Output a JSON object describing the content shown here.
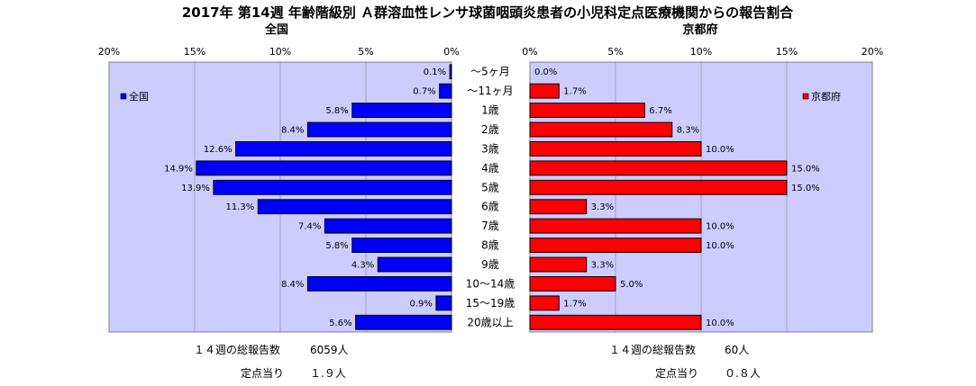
{
  "title": "2017年 第14週 年齢階級別 Ａ群溶血性レンサ球菌咽頭炎患者の小児科定点医療機関からの報告割合",
  "chart_data": {
    "type": "bar",
    "orientation": "horizontal-butterfly",
    "categories": [
      "～5ヶ月",
      "～11ヶ月",
      "1歳",
      "2歳",
      "3歳",
      "4歳",
      "5歳",
      "6歳",
      "7歳",
      "8歳",
      "9歳",
      "10～14歳",
      "15～19歳",
      "20歳以上"
    ],
    "xlim": [
      0,
      20
    ],
    "xticks": [
      "20%",
      "15%",
      "10%",
      "5%",
      "0%",
      "0%",
      "5%",
      "10%",
      "15%",
      "20%"
    ],
    "grid": true,
    "series": [
      {
        "name": "全国",
        "panel_title": "全国",
        "side": "left",
        "color": "#0000ff",
        "legend_position": "top-left",
        "values": [
          0.1,
          0.7,
          5.8,
          8.4,
          12.6,
          14.9,
          13.9,
          11.3,
          7.4,
          5.8,
          4.3,
          8.4,
          0.9,
          5.6
        ],
        "labels": [
          "0.1%",
          "0.7%",
          "5.8%",
          "8.4%",
          "12.6%",
          "14.9%",
          "13.9%",
          "11.3%",
          "7.4%",
          "5.8%",
          "4.3%",
          "8.4%",
          "0.9%",
          "5.6%"
        ]
      },
      {
        "name": "京都府",
        "panel_title": "京都府",
        "side": "right",
        "color": "#ff0000",
        "legend_position": "top-right",
        "values": [
          0.0,
          1.7,
          6.7,
          8.3,
          10.0,
          15.0,
          15.0,
          3.3,
          10.0,
          10.0,
          3.3,
          5.0,
          1.7,
          10.0
        ],
        "labels": [
          "0.0%",
          "1.7%",
          "6.7%",
          "8.3%",
          "10.0%",
          "15.0%",
          "15.0%",
          "3.3%",
          "10.0%",
          "10.0%",
          "3.3%",
          "5.0%",
          "1.7%",
          "10.0%"
        ]
      }
    ]
  },
  "footer": {
    "national": {
      "total_label": "１４週の総報告数",
      "total_value": "6059人",
      "per_label": "定点当り",
      "per_value": "１.９人"
    },
    "kyoto": {
      "total_label": "１４週の総報告数",
      "total_value": "60人",
      "per_label": "定点当り",
      "per_value": "０.８人"
    }
  }
}
